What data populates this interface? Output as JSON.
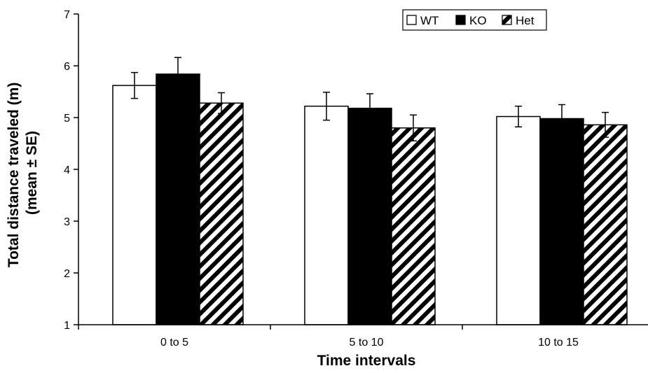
{
  "chart_data": {
    "type": "bar",
    "categories": [
      "0 to 5",
      "5 to 10",
      "10 to 15"
    ],
    "series": [
      {
        "name": "WT",
        "values": [
          5.62,
          5.22,
          5.02
        ],
        "errors": [
          0.25,
          0.27,
          0.2
        ],
        "fill": "#ffffff",
        "pattern": "solid-white"
      },
      {
        "name": "KO",
        "values": [
          5.84,
          5.18,
          4.98
        ],
        "errors": [
          0.32,
          0.28,
          0.27
        ],
        "fill": "#000000",
        "pattern": "solid-black"
      },
      {
        "name": "Het",
        "values": [
          5.28,
          4.8,
          4.86
        ],
        "errors": [
          0.2,
          0.25,
          0.24
        ],
        "fill": "#ffffff",
        "pattern": "diagonal-stripes"
      }
    ],
    "xlabel": "Time intervals",
    "ylabel": [
      "Total distance traveled (m)",
      "(mean ± SE)"
    ],
    "ylim": [
      1,
      7
    ],
    "yticks": [
      1,
      2,
      3,
      4,
      5,
      6,
      7
    ],
    "grid": false,
    "legend": "top-right"
  }
}
